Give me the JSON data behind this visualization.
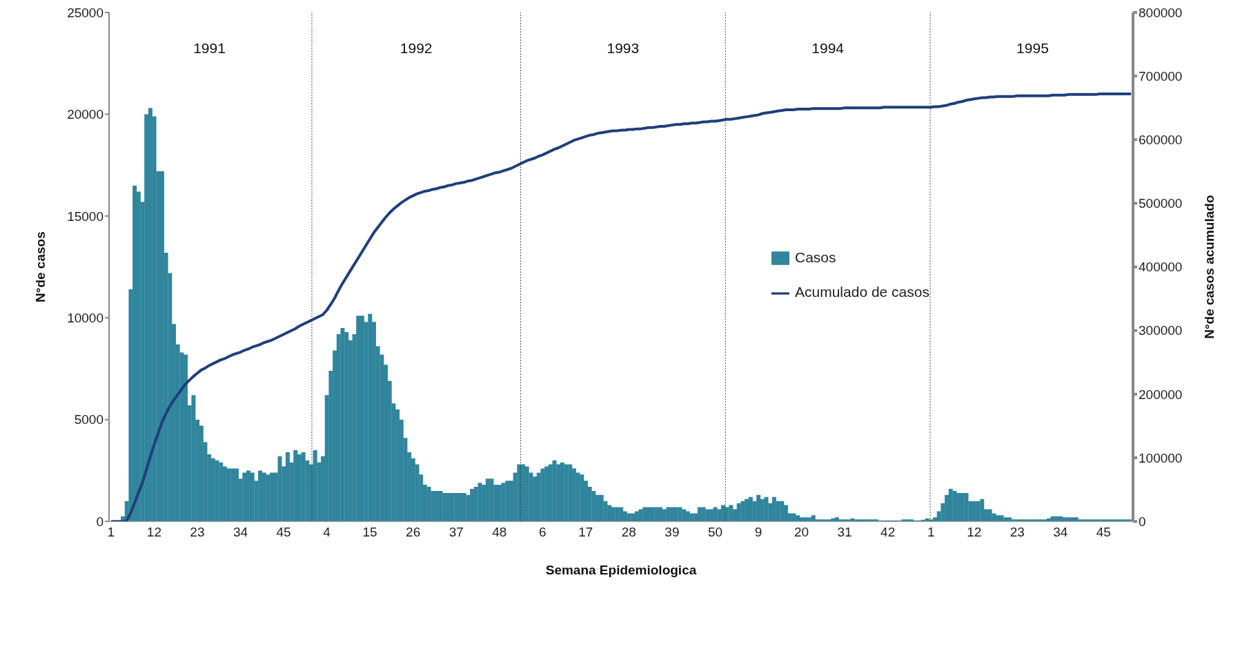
{
  "chart_data": {
    "type": "bar",
    "xlabel": "Semana Epidemiologica",
    "ylabel": "N°de  casos",
    "y2label": "N°de casos acumulado",
    "categories": [
      "1",
      null,
      null,
      null,
      null,
      null,
      null,
      null,
      null,
      null,
      null,
      "12",
      null,
      null,
      null,
      null,
      null,
      null,
      null,
      null,
      null,
      null,
      "23",
      null,
      null,
      null,
      null,
      null,
      null,
      null,
      null,
      null,
      null,
      "34",
      null,
      null,
      null,
      null,
      null,
      null,
      null,
      null,
      null,
      null,
      "45",
      null,
      null,
      null,
      null,
      null,
      null,
      null,
      null,
      null,
      null,
      "4",
      null,
      null,
      null,
      null,
      null,
      null,
      null,
      null,
      null,
      null,
      "15",
      null,
      null,
      null,
      null,
      null,
      null,
      null,
      null,
      null,
      null,
      "26",
      null,
      null,
      null,
      null,
      null,
      null,
      null,
      null,
      null,
      null,
      "37",
      null,
      null,
      null,
      null,
      null,
      null,
      null,
      null,
      null,
      null,
      "48",
      null,
      null,
      null,
      null,
      null,
      null,
      null,
      null,
      null,
      null,
      "6",
      null,
      null,
      null,
      null,
      null,
      null,
      null,
      null,
      null,
      null,
      "17",
      null,
      null,
      null,
      null,
      null,
      null,
      null,
      null,
      null,
      null,
      "28",
      null,
      null,
      null,
      null,
      null,
      null,
      null,
      null,
      null,
      null,
      "39",
      null,
      null,
      null,
      null,
      null,
      null,
      null,
      null,
      null,
      null,
      "50",
      null,
      null,
      null,
      null,
      null,
      null,
      null,
      null,
      null,
      null,
      "9",
      null,
      null,
      null,
      null,
      null,
      null,
      null,
      null,
      null,
      null,
      "20",
      null,
      null,
      null,
      null,
      null,
      null,
      null,
      null,
      null,
      null,
      "31",
      null,
      null,
      null,
      null,
      null,
      null,
      null,
      null,
      null,
      null,
      "42",
      null,
      null,
      null,
      null,
      null,
      null,
      null,
      null,
      null,
      null,
      "1",
      null,
      null,
      null,
      null,
      null,
      null,
      null,
      null,
      null,
      null,
      "12",
      null,
      null,
      null,
      null,
      null,
      null,
      null,
      null,
      null,
      null,
      "23",
      null,
      null,
      null,
      null,
      null,
      null,
      null,
      null,
      null,
      null,
      "34",
      null,
      null,
      null,
      null,
      null,
      null,
      null,
      null,
      null,
      null,
      "45",
      null,
      null,
      null,
      null,
      null,
      null,
      null
    ],
    "series": [
      {
        "name": "Casos",
        "color": "#31859c",
        "values": [
          0,
          0,
          0,
          250,
          1000,
          11400,
          16500,
          16200,
          15700,
          20000,
          20300,
          19900,
          17200,
          17200,
          13200,
          12200,
          9700,
          8700,
          8300,
          8200,
          5700,
          6200,
          5000,
          4700,
          3900,
          3300,
          3100,
          3000,
          2900,
          2700,
          2600,
          2600,
          2600,
          2100,
          2400,
          2500,
          2400,
          2000,
          2500,
          2400,
          2300,
          2400,
          2400,
          3200,
          2700,
          3400,
          2900,
          3500,
          3300,
          3400,
          3000,
          2800,
          3500,
          2900,
          3200,
          6200,
          7400,
          8400,
          9200,
          9500,
          9300,
          8900,
          9200,
          10100,
          10100,
          9800,
          10200,
          9800,
          8600,
          8200,
          7700,
          6900,
          5800,
          5500,
          5000,
          4100,
          3400,
          3100,
          2800,
          2300,
          1800,
          1700,
          1500,
          1500,
          1500,
          1400,
          1400,
          1400,
          1400,
          1400,
          1400,
          1300,
          1600,
          1700,
          1900,
          1800,
          2100,
          2100,
          1800,
          1800,
          1900,
          2000,
          2000,
          2400,
          2800,
          2800,
          2700,
          2400,
          2200,
          2400,
          2600,
          2700,
          2800,
          3000,
          2800,
          2900,
          2800,
          2800,
          2600,
          2400,
          2300,
          2000,
          1700,
          1500,
          1300,
          1300,
          1000,
          800,
          700,
          700,
          700,
          500,
          400,
          400,
          500,
          600,
          700,
          700,
          700,
          700,
          700,
          600,
          700,
          700,
          700,
          700,
          600,
          500,
          400,
          400,
          700,
          700,
          600,
          600,
          700,
          600,
          800,
          700,
          800,
          600,
          900,
          1000,
          1100,
          1200,
          1000,
          1300,
          1100,
          1200,
          900,
          1200,
          1000,
          1000,
          800,
          400,
          400,
          300,
          200,
          200,
          200,
          300,
          100,
          100,
          100,
          100,
          150,
          200,
          100,
          100,
          100,
          150,
          100,
          100,
          100,
          100,
          100,
          100,
          50,
          50,
          50,
          50,
          50,
          50,
          100,
          100,
          100,
          50,
          50,
          80,
          150,
          100,
          200,
          500,
          900,
          1300,
          1600,
          1500,
          1400,
          1400,
          1400,
          1000,
          1000,
          1000,
          1100,
          600,
          600,
          400,
          300,
          300,
          200,
          200,
          100,
          100,
          100,
          100,
          100,
          100,
          100,
          100,
          100,
          150,
          250,
          250,
          250,
          200,
          200,
          200,
          200,
          100,
          100,
          100,
          100,
          100,
          100,
          100,
          100,
          100,
          100,
          100,
          100,
          100,
          100
        ]
      },
      {
        "name": "Acumulado de casos",
        "type": "line",
        "axis": "y2",
        "color": "#1f3f7a",
        "values": [
          0,
          0,
          0,
          0,
          1000,
          13000,
          29000,
          45000,
          61000,
          81000,
          101000,
          121000,
          138000,
          156000,
          169000,
          181000,
          191000,
          199000,
          208000,
          216000,
          222000,
          228000,
          233000,
          238000,
          241000,
          245000,
          248000,
          251000,
          254000,
          256000,
          259000,
          262000,
          264000,
          266000,
          269000,
          271000,
          274000,
          276000,
          278000,
          281000,
          283000,
          285000,
          288000,
          291000,
          294000,
          297000,
          300000,
          303000,
          307000,
          310000,
          313000,
          316000,
          319000,
          322000,
          325000,
          332000,
          341000,
          351000,
          363000,
          374000,
          384000,
          394000,
          404000,
          414000,
          424000,
          434000,
          444000,
          454000,
          462000,
          470000,
          478000,
          485000,
          491000,
          496000,
          501000,
          505000,
          509000,
          512000,
          515000,
          517000,
          519000,
          520000,
          522000,
          523000,
          525000,
          526000,
          528000,
          529000,
          531000,
          532000,
          533000,
          535000,
          536000,
          538000,
          540000,
          542000,
          544000,
          546000,
          548000,
          549000,
          551000,
          553000,
          555000,
          558000,
          561000,
          564000,
          567000,
          569000,
          571000,
          574000,
          576000,
          579000,
          582000,
          585000,
          587000,
          590000,
          593000,
          596000,
          599000,
          601000,
          603000,
          605000,
          607000,
          608000,
          610000,
          611000,
          612000,
          613000,
          614000,
          614000,
          615000,
          615000,
          616000,
          616000,
          617000,
          617000,
          618000,
          619000,
          619000,
          620000,
          621000,
          621000,
          622000,
          623000,
          624000,
          624000,
          625000,
          625000,
          626000,
          626000,
          627000,
          628000,
          628000,
          629000,
          629000,
          630000,
          631000,
          632000,
          632000,
          633000,
          634000,
          635000,
          636000,
          637000,
          638000,
          639000,
          641000,
          642000,
          643000,
          644000,
          645000,
          646000,
          647000,
          647000,
          647000,
          648000,
          648000,
          648000,
          648000,
          649000,
          649000,
          649000,
          649000,
          649000,
          649000,
          649000,
          649000,
          650000,
          650000,
          650000,
          650000,
          650000,
          650000,
          650000,
          650000,
          650000,
          650000,
          651000,
          651000,
          651000,
          651000,
          651000,
          651000,
          651000,
          651000,
          651000,
          651000,
          651000,
          651000,
          651000,
          652000,
          652000,
          653000,
          654000,
          656000,
          657000,
          659000,
          660000,
          662000,
          663000,
          664000,
          665000,
          666000,
          666000,
          667000,
          667000,
          668000,
          668000,
          668000,
          668000,
          668000,
          669000,
          669000,
          669000,
          669000,
          669000,
          669000,
          669000,
          669000,
          669000,
          670000,
          670000,
          670000,
          670000,
          671000,
          671000,
          671000,
          671000,
          671000,
          671000,
          671000,
          671000,
          672000,
          672000,
          672000,
          672000,
          672000,
          672000,
          672000,
          672000,
          672000
        ]
      }
    ],
    "ylim": [
      0,
      25000
    ],
    "yticks": [
      0,
      5000,
      10000,
      15000,
      20000,
      25000
    ],
    "y2lim": [
      0,
      800000
    ],
    "y2ticks": [
      0,
      100000,
      200000,
      300000,
      400000,
      500000,
      600000,
      700000,
      800000
    ],
    "annotations": [
      "1991",
      "1992",
      "1993",
      "1994",
      "1995"
    ],
    "legend": "right"
  }
}
